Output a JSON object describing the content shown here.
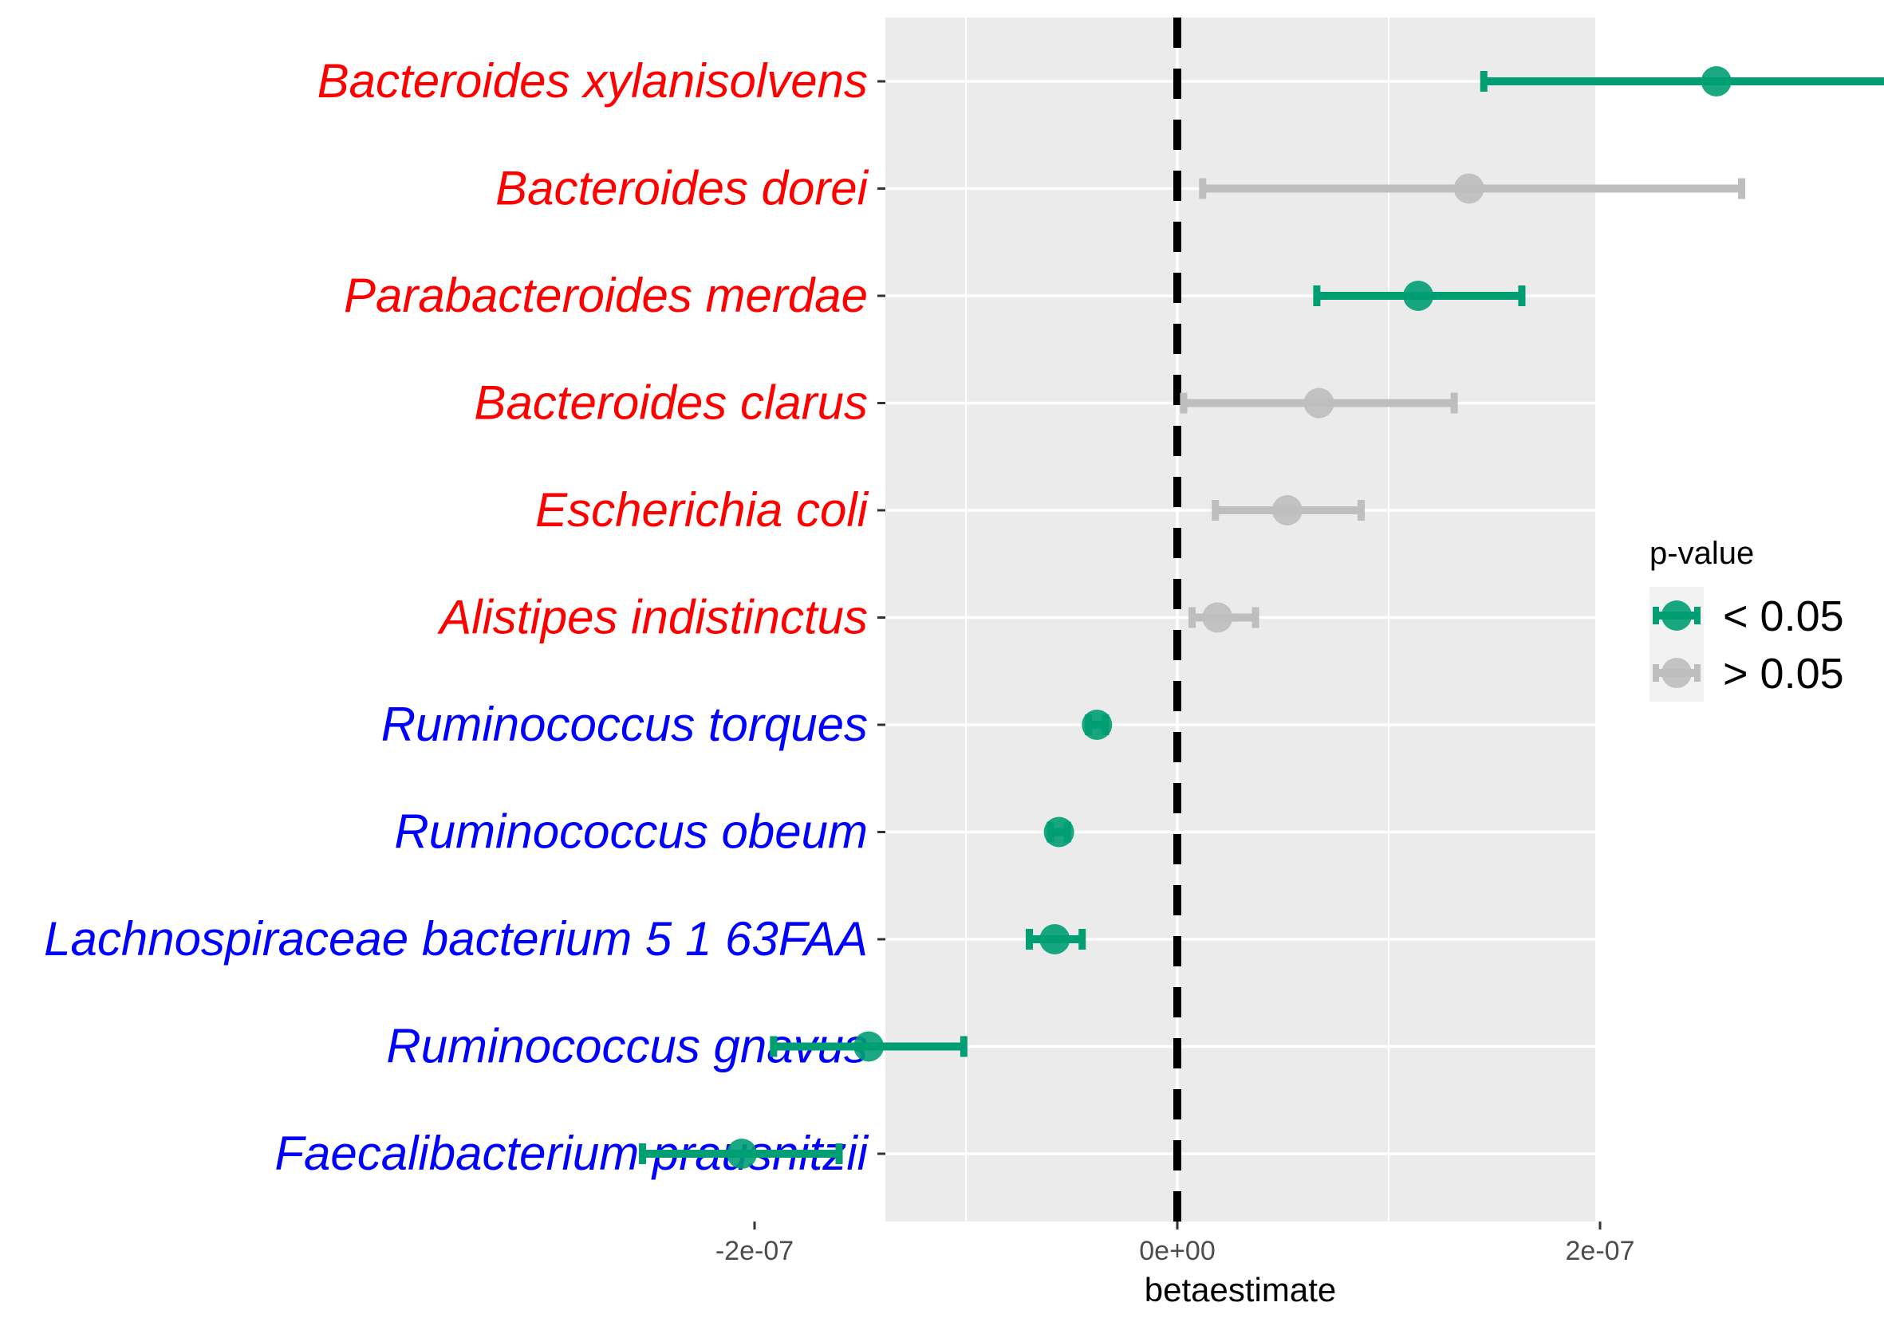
{
  "chart_data": {
    "type": "forest",
    "title": "",
    "xlabel": "betaestimate",
    "ylabel": "",
    "xlim": [
      -2.8e-07,
      3.95e-07
    ],
    "x_ticks": [
      {
        "value": -2e-07,
        "label": "-2e-07"
      },
      {
        "value": 0,
        "label": "0e+00"
      },
      {
        "value": 2e-07,
        "label": "2e-07"
      }
    ],
    "x_minor_gridlines": [
      -1e-07,
      1e-07,
      3e-07
    ],
    "grid": true,
    "reference_line": {
      "x": 0,
      "style": "dashed"
    },
    "legend": {
      "title": "p-value",
      "placement": "right",
      "entries": [
        {
          "key": "sig",
          "label": "< 0.05",
          "color": "#009E73"
        },
        {
          "key": "ns",
          "label": "> 0.05",
          "color": "#BEBEBE"
        }
      ]
    },
    "rows": [
      {
        "label": "Bacteroides xylanisolvens",
        "label_color": "#FF0000",
        "estimate": 2.55e-07,
        "lower": 1.45e-07,
        "upper": 3.67e-07,
        "group": "sig"
      },
      {
        "label": "Bacteroides dorei",
        "label_color": "#FF0000",
        "estimate": 1.38e-07,
        "lower": 1.2e-08,
        "upper": 2.67e-07,
        "group": "ns"
      },
      {
        "label": "Parabacteroides merdae",
        "label_color": "#FF0000",
        "estimate": 1.14e-07,
        "lower": 6.6e-08,
        "upper": 1.63e-07,
        "group": "sig"
      },
      {
        "label": "Bacteroides clarus",
        "label_color": "#FF0000",
        "estimate": 6.7e-08,
        "lower": 3e-09,
        "upper": 1.31e-07,
        "group": "ns"
      },
      {
        "label": "Escherichia coli",
        "label_color": "#FF0000",
        "estimate": 5.2e-08,
        "lower": 1.8e-08,
        "upper": 8.7e-08,
        "group": "ns"
      },
      {
        "label": "Alistipes indistinctus",
        "label_color": "#FF0000",
        "estimate": 1.9e-08,
        "lower": 7e-09,
        "upper": 3.7e-08,
        "group": "ns"
      },
      {
        "label": "Ruminococcus torques",
        "label_color": "#0000FF",
        "estimate": -3.8e-08,
        "lower": -4.2e-08,
        "upper": -3.4e-08,
        "group": "sig"
      },
      {
        "label": "Ruminococcus obeum",
        "label_color": "#0000FF",
        "estimate": -5.6e-08,
        "lower": -6e-08,
        "upper": -5.2e-08,
        "group": "sig"
      },
      {
        "label": "Lachnospiraceae bacterium 5 1 63FAA",
        "label_color": "#0000FF",
        "estimate": -5.8e-08,
        "lower": -7e-08,
        "upper": -4.5e-08,
        "group": "sig"
      },
      {
        "label": "Ruminococcus gnavus",
        "label_color": "#0000FF",
        "estimate": -1.46e-07,
        "lower": -1.91e-07,
        "upper": -1.01e-07,
        "group": "sig"
      },
      {
        "label": "Faecalibacterium prausnitzii",
        "label_color": "#0000FF",
        "estimate": -2.06e-07,
        "lower": -2.53e-07,
        "upper": -1.6e-07,
        "group": "sig"
      }
    ]
  }
}
